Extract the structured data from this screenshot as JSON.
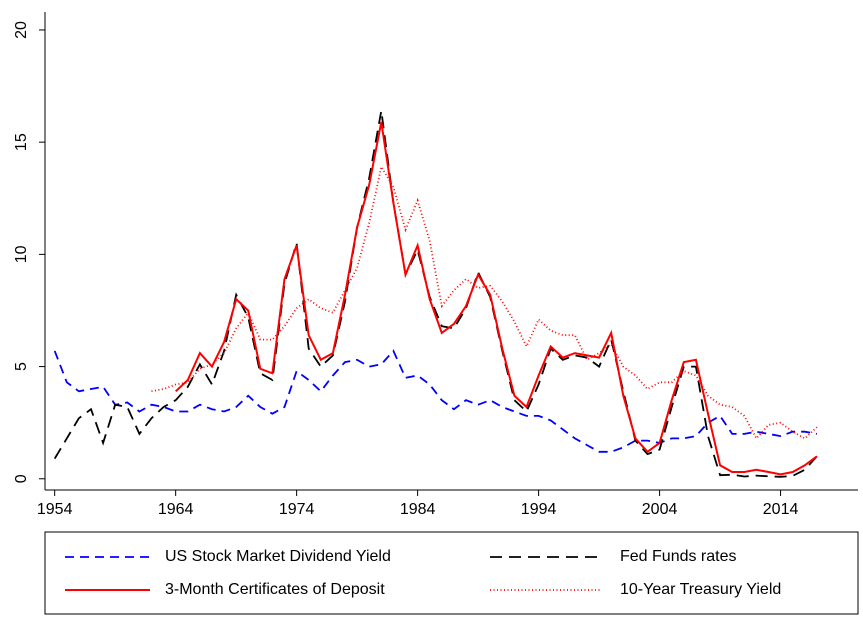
{
  "chart_data": {
    "type": "line",
    "x": [
      1954,
      1955,
      1956,
      1957,
      1958,
      1959,
      1960,
      1961,
      1962,
      1963,
      1964,
      1965,
      1966,
      1967,
      1968,
      1969,
      1970,
      1971,
      1972,
      1973,
      1974,
      1975,
      1976,
      1977,
      1978,
      1979,
      1980,
      1981,
      1982,
      1983,
      1984,
      1985,
      1986,
      1987,
      1988,
      1989,
      1990,
      1991,
      1992,
      1993,
      1994,
      1995,
      1996,
      1997,
      1998,
      1999,
      2000,
      2001,
      2002,
      2003,
      2004,
      2005,
      2006,
      2007,
      2008,
      2009,
      2010,
      2011,
      2012,
      2013,
      2014,
      2015,
      2016,
      2017
    ],
    "series": [
      {
        "name": "US Stock Market Dividend Yield",
        "color": "#0000ff",
        "style": "dashed",
        "values": [
          5.7,
          4.3,
          3.9,
          4.0,
          4.1,
          3.3,
          3.4,
          3.0,
          3.3,
          3.2,
          3.0,
          3.0,
          3.3,
          3.1,
          3.0,
          3.2,
          3.7,
          3.2,
          2.9,
          3.2,
          4.8,
          4.4,
          3.9,
          4.6,
          5.2,
          5.3,
          5.0,
          5.1,
          5.7,
          4.5,
          4.6,
          4.2,
          3.5,
          3.1,
          3.5,
          3.3,
          3.5,
          3.2,
          3.0,
          2.8,
          2.8,
          2.6,
          2.2,
          1.8,
          1.5,
          1.2,
          1.2,
          1.4,
          1.7,
          1.7,
          1.6,
          1.8,
          1.8,
          1.9,
          2.5,
          2.8,
          2.0,
          2.0,
          2.1,
          2.0,
          1.9,
          2.1,
          2.1,
          2.0
        ]
      },
      {
        "name": "Fed Funds rates",
        "color": "#000000",
        "style": "longdash",
        "values": [
          0.9,
          1.8,
          2.7,
          3.1,
          1.6,
          3.3,
          3.2,
          2.0,
          2.7,
          3.2,
          3.5,
          4.1,
          5.1,
          4.2,
          5.7,
          8.2,
          7.2,
          4.7,
          4.4,
          8.7,
          10.5,
          5.8,
          5.0,
          5.5,
          7.9,
          11.2,
          13.4,
          16.4,
          12.3,
          9.1,
          10.2,
          8.1,
          6.8,
          6.7,
          7.6,
          9.2,
          8.1,
          5.7,
          3.5,
          3.0,
          4.2,
          5.8,
          5.3,
          5.5,
          5.4,
          5.0,
          6.2,
          3.9,
          1.7,
          1.1,
          1.3,
          3.2,
          5.0,
          5.0,
          1.9,
          0.16,
          0.18,
          0.1,
          0.14,
          0.11,
          0.09,
          0.13,
          0.4,
          1.0
        ]
      },
      {
        "name": "3-Month Certificates of Deposit",
        "color": "#ff0000",
        "style": "solid",
        "values": [
          null,
          null,
          null,
          null,
          null,
          null,
          null,
          null,
          null,
          null,
          3.9,
          4.4,
          5.6,
          5.0,
          6.1,
          8.0,
          7.5,
          4.9,
          4.7,
          8.9,
          10.4,
          6.4,
          5.3,
          5.6,
          8.2,
          11.2,
          13.1,
          15.9,
          12.3,
          9.1,
          10.4,
          8.0,
          6.5,
          6.9,
          7.7,
          9.1,
          8.2,
          5.8,
          3.7,
          3.2,
          4.6,
          5.9,
          5.4,
          5.6,
          5.5,
          5.4,
          6.5,
          3.7,
          1.8,
          1.2,
          1.6,
          3.5,
          5.2,
          5.3,
          2.9,
          0.6,
          0.3,
          0.3,
          0.4,
          0.3,
          0.2,
          0.3,
          0.6,
          1.0
        ]
      },
      {
        "name": "10-Year Treasury Yield",
        "color": "#ff0000",
        "style": "dotted",
        "values": [
          null,
          null,
          null,
          null,
          null,
          null,
          null,
          null,
          3.9,
          4.0,
          4.2,
          4.3,
          4.9,
          5.1,
          5.6,
          6.7,
          7.4,
          6.2,
          6.2,
          6.8,
          7.6,
          8.0,
          7.6,
          7.4,
          8.4,
          9.4,
          11.4,
          13.9,
          13.0,
          11.1,
          12.4,
          10.6,
          7.7,
          8.4,
          8.9,
          8.5,
          8.6,
          7.9,
          7.0,
          5.9,
          7.1,
          6.6,
          6.4,
          6.4,
          5.3,
          5.6,
          6.0,
          5.0,
          4.6,
          4.0,
          4.3,
          4.3,
          4.8,
          4.6,
          3.7,
          3.3,
          3.2,
          2.8,
          1.8,
          2.4,
          2.5,
          2.1,
          1.8,
          2.3
        ]
      }
    ],
    "xlim": [
      1953.2,
      2020.4
    ],
    "xticks": [
      1954,
      1964,
      1974,
      1984,
      1994,
      2004,
      2014
    ],
    "ylim": [
      -0.5,
      20.8
    ],
    "yticks": [
      0,
      5,
      10,
      15,
      20
    ]
  }
}
